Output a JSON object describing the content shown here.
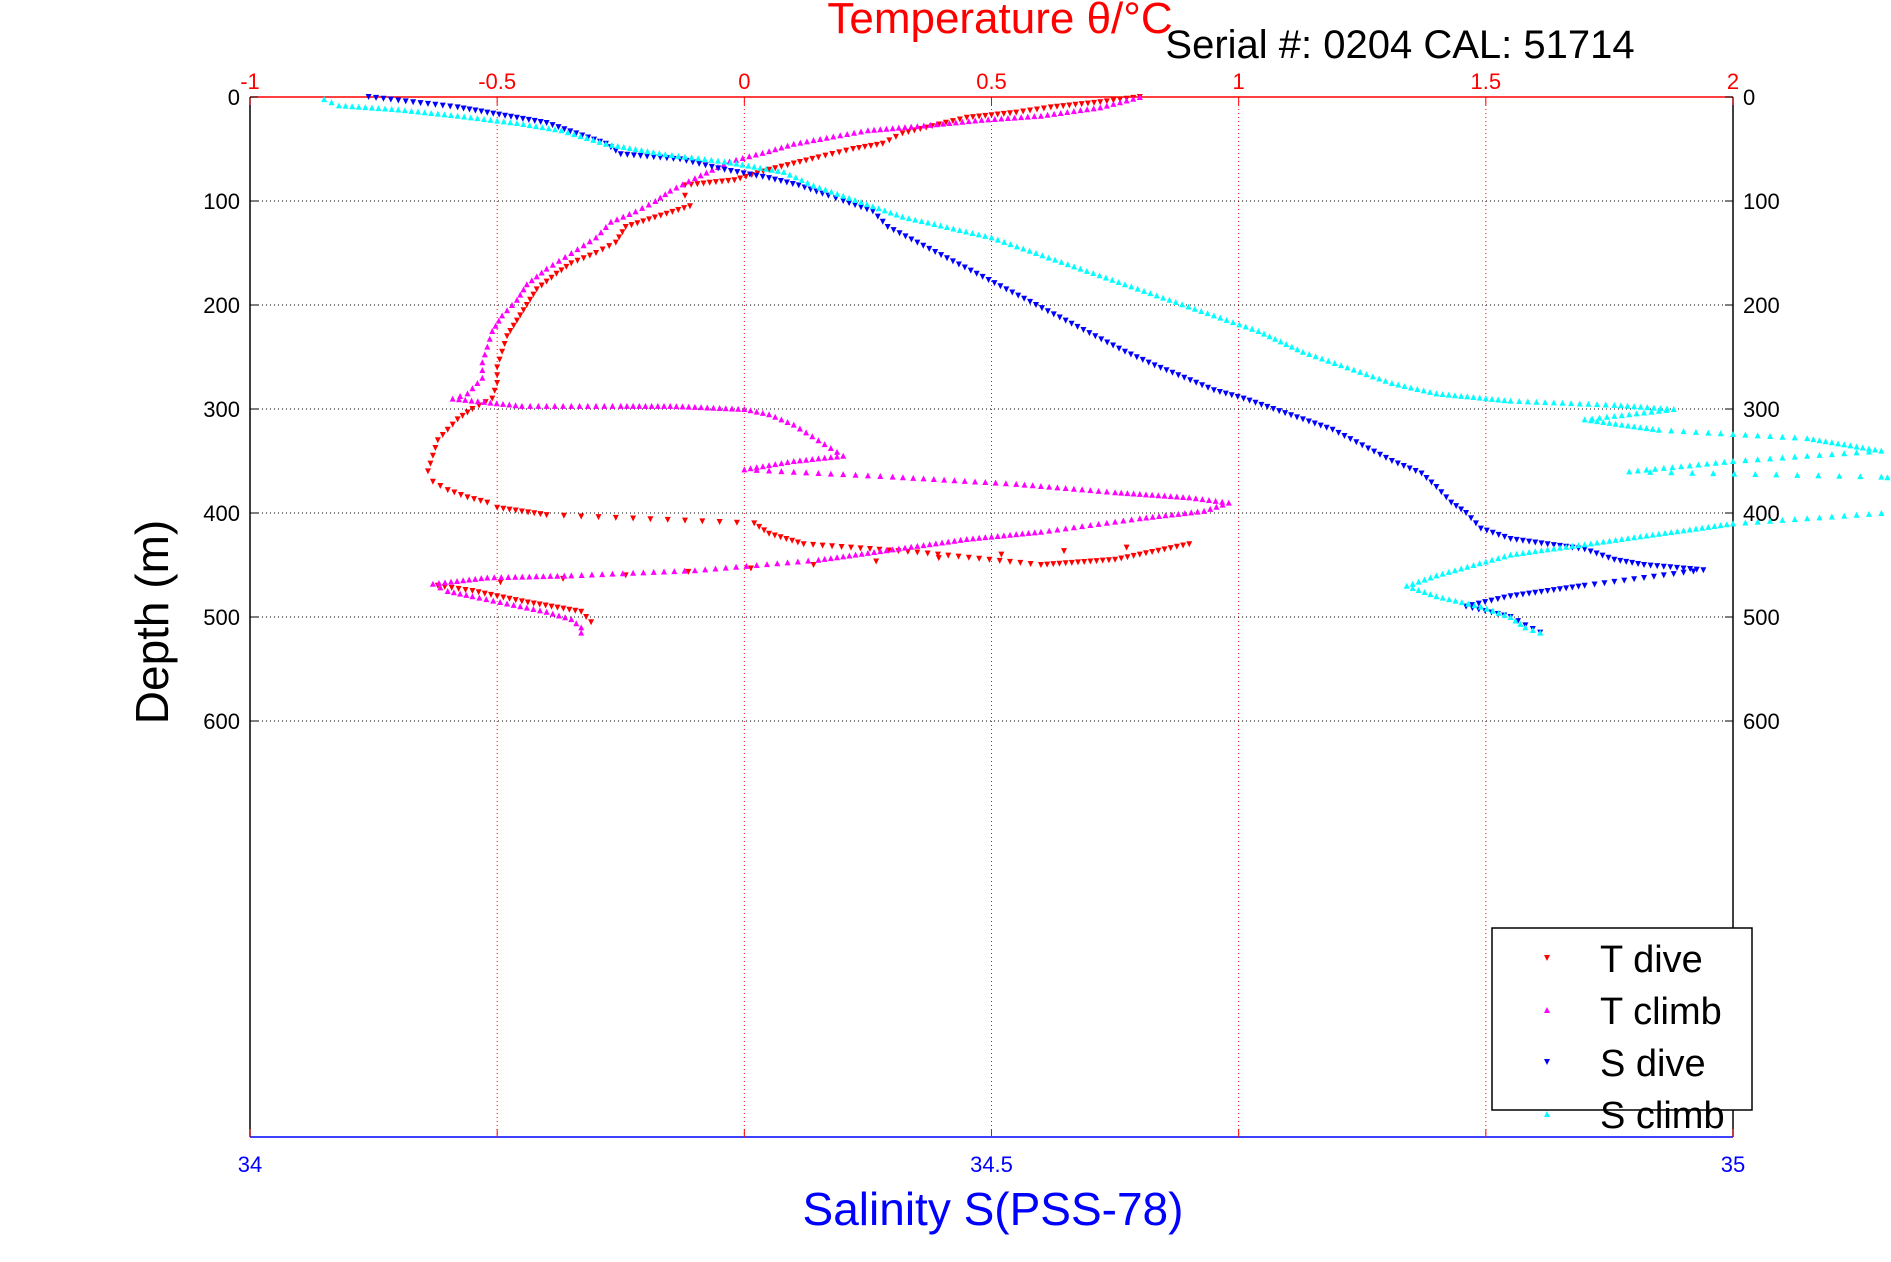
{
  "chart_data": {
    "type": "scatter",
    "title": "Temperature θ/°C",
    "subtitle": "Serial #: 0204  CAL: 51714",
    "ylabel": "Depth (m)",
    "xlabel": "Salinity S(PSS-78)",
    "temperature_axis": {
      "range": [
        -1,
        2
      ],
      "ticks": [
        "-1",
        "-0.5",
        "0",
        "0.5",
        "1",
        "1.5",
        "2"
      ],
      "color": "#ff0000"
    },
    "salinity_axis": {
      "range": [
        34,
        35
      ],
      "ticks": [
        "34",
        "34.5",
        "35"
      ],
      "color": "#0000ff"
    },
    "depth_axis": {
      "range": [
        0,
        1000
      ],
      "reversed": true,
      "ticks": [
        "0",
        "100",
        "200",
        "300",
        "400",
        "500",
        "600"
      ]
    },
    "grid": true,
    "legend_position": "bottom-right",
    "series": [
      {
        "name": "T dive",
        "axis": "temperature",
        "color": "#ff0000",
        "marker": "triangle-down",
        "points": [
          [
            0.8,
            0
          ],
          [
            0.72,
            5
          ],
          [
            0.62,
            10
          ],
          [
            0.55,
            15
          ],
          [
            0.45,
            20
          ],
          [
            0.38,
            28
          ],
          [
            0.32,
            35
          ],
          [
            0.28,
            45
          ],
          [
            0.22,
            50
          ],
          [
            0.15,
            58
          ],
          [
            0.05,
            70
          ],
          [
            -0.02,
            80
          ],
          [
            -0.12,
            85
          ],
          [
            -0.12,
            95
          ],
          [
            -0.11,
            105
          ],
          [
            -0.24,
            125
          ],
          [
            -0.26,
            140
          ],
          [
            -0.3,
            150
          ],
          [
            -0.35,
            160
          ],
          [
            -0.38,
            170
          ],
          [
            -0.42,
            185
          ],
          [
            -0.44,
            200
          ],
          [
            -0.46,
            215
          ],
          [
            -0.48,
            230
          ],
          [
            -0.49,
            245
          ],
          [
            -0.5,
            260
          ],
          [
            -0.5,
            275
          ],
          [
            -0.51,
            290
          ],
          [
            -0.55,
            300
          ],
          [
            -0.58,
            310
          ],
          [
            -0.6,
            320
          ],
          [
            -0.62,
            330
          ],
          [
            -0.63,
            345
          ],
          [
            -0.64,
            360
          ],
          [
            -0.63,
            370
          ],
          [
            -0.6,
            378
          ],
          [
            -0.56,
            385
          ],
          [
            -0.52,
            390
          ],
          [
            -0.5,
            395
          ],
          [
            -0.4,
            402
          ],
          [
            0.02,
            410
          ],
          [
            0.05,
            420
          ],
          [
            0.12,
            430
          ],
          [
            0.35,
            438
          ],
          [
            0.6,
            450
          ],
          [
            0.75,
            445
          ],
          [
            0.9,
            430
          ],
          [
            -0.62,
            470
          ],
          [
            -0.55,
            475
          ],
          [
            -0.45,
            485
          ],
          [
            -0.33,
            495
          ],
          [
            -0.31,
            505
          ]
        ]
      },
      {
        "name": "T climb",
        "axis": "temperature",
        "color": "#ff00ff",
        "marker": "triangle-up",
        "points": [
          [
            0.8,
            0
          ],
          [
            0.72,
            10
          ],
          [
            0.6,
            18
          ],
          [
            0.48,
            22
          ],
          [
            0.35,
            28
          ],
          [
            0.25,
            32
          ],
          [
            0.18,
            38
          ],
          [
            0.1,
            45
          ],
          [
            0.05,
            52
          ],
          [
            -0.03,
            62
          ],
          [
            -0.1,
            78
          ],
          [
            -0.15,
            90
          ],
          [
            -0.18,
            100
          ],
          [
            -0.22,
            110
          ],
          [
            -0.27,
            120
          ],
          [
            -0.3,
            135
          ],
          [
            -0.35,
            150
          ],
          [
            -0.4,
            165
          ],
          [
            -0.44,
            180
          ],
          [
            -0.46,
            195
          ],
          [
            -0.49,
            210
          ],
          [
            -0.51,
            225
          ],
          [
            -0.52,
            240
          ],
          [
            -0.53,
            255
          ],
          [
            -0.53,
            270
          ],
          [
            -0.56,
            285
          ],
          [
            -0.59,
            290
          ],
          [
            -0.45,
            297
          ],
          [
            -0.25,
            297
          ],
          [
            -0.15,
            297
          ],
          [
            0.0,
            300
          ],
          [
            0.05,
            305
          ],
          [
            0.1,
            315
          ],
          [
            0.15,
            330
          ],
          [
            0.2,
            345
          ],
          [
            0.1,
            350
          ],
          [
            0.0,
            358
          ],
          [
            0.3,
            365
          ],
          [
            0.55,
            372
          ],
          [
            0.75,
            380
          ],
          [
            0.9,
            385
          ],
          [
            0.98,
            390
          ],
          [
            0.93,
            398
          ],
          [
            0.8,
            405
          ],
          [
            0.6,
            418
          ],
          [
            0.45,
            425
          ],
          [
            0.3,
            435
          ],
          [
            0.15,
            445
          ],
          [
            -0.1,
            455
          ],
          [
            -0.35,
            460
          ],
          [
            -0.52,
            462
          ],
          [
            -0.63,
            468
          ],
          [
            -0.6,
            475
          ],
          [
            -0.55,
            480
          ],
          [
            -0.48,
            487
          ],
          [
            -0.4,
            495
          ],
          [
            -0.35,
            502
          ],
          [
            -0.33,
            510
          ],
          [
            -0.33,
            515
          ]
        ]
      },
      {
        "name": "S dive",
        "axis": "salinity",
        "color": "#0000ff",
        "marker": "triangle-down",
        "points": [
          [
            34.08,
            0
          ],
          [
            34.14,
            10
          ],
          [
            34.16,
            15
          ],
          [
            34.2,
            25
          ],
          [
            34.22,
            35
          ],
          [
            34.24,
            45
          ],
          [
            34.25,
            55
          ],
          [
            34.29,
            60
          ],
          [
            34.32,
            70
          ],
          [
            34.35,
            78
          ],
          [
            34.37,
            85
          ],
          [
            34.39,
            95
          ],
          [
            34.4,
            100
          ],
          [
            34.42,
            110
          ],
          [
            34.43,
            125
          ],
          [
            34.45,
            140
          ],
          [
            34.47,
            155
          ],
          [
            34.49,
            170
          ],
          [
            34.51,
            185
          ],
          [
            34.53,
            200
          ],
          [
            34.55,
            215
          ],
          [
            34.57,
            230
          ],
          [
            34.59,
            245
          ],
          [
            34.61,
            258
          ],
          [
            34.63,
            270
          ],
          [
            34.65,
            282
          ],
          [
            34.67,
            290
          ],
          [
            34.69,
            300
          ],
          [
            34.71,
            310
          ],
          [
            34.73,
            320
          ],
          [
            34.75,
            335
          ],
          [
            34.77,
            350
          ],
          [
            34.79,
            362
          ],
          [
            34.8,
            375
          ],
          [
            34.81,
            390
          ],
          [
            34.82,
            400
          ],
          [
            34.83,
            415
          ],
          [
            34.85,
            425
          ],
          [
            34.9,
            435
          ],
          [
            34.92,
            445
          ],
          [
            34.94,
            450
          ],
          [
            34.98,
            455
          ],
          [
            34.9,
            470
          ],
          [
            34.85,
            480
          ],
          [
            34.82,
            490
          ],
          [
            34.85,
            500
          ],
          [
            34.86,
            508
          ],
          [
            34.87,
            515
          ]
        ]
      },
      {
        "name": "S climb",
        "axis": "salinity",
        "color": "#00ffff",
        "marker": "triangle-up",
        "points": [
          [
            34.05,
            2
          ],
          [
            34.06,
            8
          ],
          [
            34.1,
            12
          ],
          [
            34.14,
            18
          ],
          [
            34.18,
            25
          ],
          [
            34.21,
            32
          ],
          [
            34.24,
            45
          ],
          [
            34.28,
            55
          ],
          [
            34.32,
            62
          ],
          [
            34.36,
            72
          ],
          [
            34.38,
            85
          ],
          [
            34.4,
            95
          ],
          [
            34.42,
            105
          ],
          [
            34.44,
            115
          ],
          [
            34.47,
            125
          ],
          [
            34.5,
            135
          ],
          [
            34.53,
            150
          ],
          [
            34.56,
            165
          ],
          [
            34.59,
            180
          ],
          [
            34.62,
            195
          ],
          [
            34.65,
            210
          ],
          [
            34.68,
            225
          ],
          [
            34.71,
            245
          ],
          [
            34.74,
            260
          ],
          [
            34.77,
            275
          ],
          [
            34.8,
            285
          ],
          [
            34.85,
            292
          ],
          [
            34.92,
            296
          ],
          [
            34.96,
            300
          ],
          [
            34.9,
            310
          ],
          [
            34.95,
            320
          ],
          [
            35.05,
            328
          ],
          [
            35.1,
            340
          ],
          [
            35.0,
            350
          ],
          [
            34.93,
            360
          ],
          [
            35.1,
            365
          ],
          [
            35.15,
            372
          ],
          [
            35.25,
            378
          ],
          [
            35.2,
            388
          ],
          [
            35.1,
            400
          ],
          [
            35.0,
            410
          ],
          [
            34.95,
            420
          ],
          [
            34.9,
            430
          ],
          [
            34.85,
            440
          ],
          [
            34.8,
            460
          ],
          [
            34.78,
            470
          ],
          [
            34.8,
            480
          ],
          [
            34.83,
            490
          ],
          [
            34.85,
            500
          ],
          [
            34.86,
            510
          ],
          [
            34.87,
            515
          ]
        ]
      }
    ]
  }
}
